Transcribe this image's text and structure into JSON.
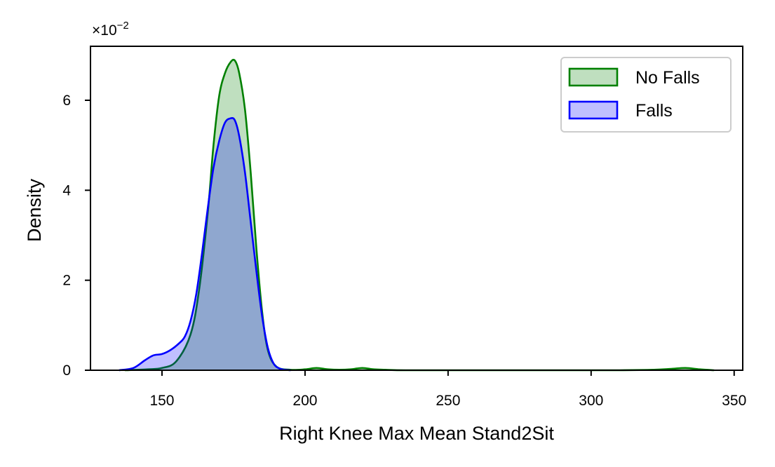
{
  "chart_data": {
    "type": "area",
    "xlabel": "Right Knee Max Mean Stand2Sit",
    "ylabel": "Density",
    "y_multiplier": {
      "base": "×10",
      "exponent": "−2"
    },
    "xlim": [
      125,
      353
    ],
    "ylim": [
      0,
      7.2
    ],
    "xticks": [
      150,
      200,
      250,
      300,
      350
    ],
    "yticks": [
      0,
      2,
      4,
      6
    ],
    "legend": {
      "position": "top-right"
    },
    "series": [
      {
        "name": "No Falls",
        "line_color": "#008000",
        "fill_color": "#008000",
        "fill_opacity": 0.25,
        "x": [
          137,
          145,
          150,
          155,
          160,
          163,
          166,
          168,
          170,
          172,
          174,
          175.5,
          177,
          179,
          181,
          183,
          185,
          187,
          190,
          195,
          200,
          204,
          208,
          212,
          216,
          220,
          224,
          228,
          235,
          250,
          280,
          310,
          322,
          328,
          333,
          338,
          343
        ],
        "values": [
          0,
          0.02,
          0.05,
          0.2,
          0.8,
          1.8,
          3.5,
          5.0,
          6.1,
          6.6,
          6.85,
          6.88,
          6.6,
          5.8,
          4.4,
          2.7,
          1.3,
          0.45,
          0.08,
          0.01,
          0.02,
          0.05,
          0.02,
          0.01,
          0.02,
          0.05,
          0.02,
          0.01,
          0,
          0,
          0,
          0,
          0.01,
          0.03,
          0.05,
          0.02,
          0
        ]
      },
      {
        "name": "Falls",
        "line_color": "#0000ff",
        "fill_color": "#0000ff",
        "fill_opacity": 0.25,
        "x": [
          135,
          140,
          144,
          147,
          150,
          153,
          156,
          158,
          160,
          162,
          164,
          166,
          168,
          170,
          172,
          174,
          175.5,
          177,
          179,
          181,
          183,
          185,
          187,
          189,
          191,
          193,
          195
        ],
        "values": [
          0,
          0.05,
          0.22,
          0.33,
          0.36,
          0.45,
          0.6,
          0.75,
          1.1,
          1.7,
          2.6,
          3.6,
          4.5,
          5.1,
          5.5,
          5.6,
          5.55,
          5.2,
          4.4,
          3.3,
          2.2,
          1.2,
          0.5,
          0.15,
          0.04,
          0.01,
          0
        ]
      }
    ]
  }
}
